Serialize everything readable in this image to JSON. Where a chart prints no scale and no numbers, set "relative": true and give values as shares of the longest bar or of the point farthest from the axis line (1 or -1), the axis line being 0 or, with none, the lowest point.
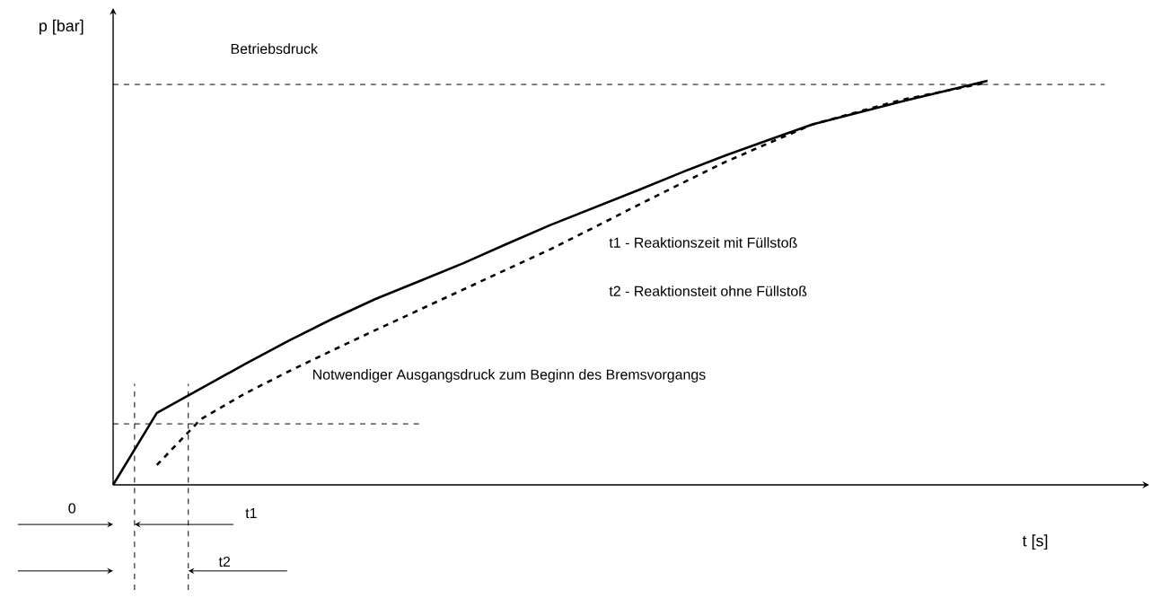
{
  "chart_data": {
    "type": "line",
    "relative": true,
    "xlabel": "t [s]",
    "ylabel": "p [bar]",
    "marker": "none",
    "categories": [
      null,
      null,
      null,
      null,
      null,
      null,
      null,
      null,
      null,
      null,
      null,
      null,
      null,
      null,
      null,
      null,
      null,
      null,
      null,
      null,
      null,
      null,
      null,
      null
    ],
    "series": [
      {
        "color": "#000000",
        "line_style": "solid",
        "values": [
          0,
          0.178,
          0.238,
          0.298,
          0.356,
          0.41,
          0.46,
          0.504,
          0.548,
          0.596,
          0.643,
          0.686,
          0.729,
          0.773,
          0.815,
          0.854,
          0.892,
          0.92,
          0.948,
          0.974,
          1.0,
          null,
          null,
          null
        ]
      },
      {
        "color": "#000000",
        "line_style": "dashed",
        "values": [
          null,
          0.049,
          0.162,
          0.225,
          0.28,
          0.332,
          0.383,
          0.433,
          0.483,
          0.533,
          0.583,
          0.637,
          0.692,
          0.746,
          0.799,
          0.846,
          0.892,
          0.922,
          0.952,
          0.974,
          0.996,
          null,
          null,
          null
        ]
      }
    ],
    "ref_lines": [
      {
        "axis": "y",
        "value": 0.991,
        "label": "Betriebsdruck",
        "line_style": "dashed"
      },
      {
        "axis": "y",
        "value": 0.151,
        "label": "Notwendiger Ausgangsdruck zum Beginn des Bremsvorgangs",
        "line_style": "dashed"
      }
    ],
    "annotations": [
      "t1 - Reaktionszeit mit Füllstoß",
      "t2 - Reaktionsteit ohne Füllstoß",
      "0",
      "t1",
      "t2"
    ]
  }
}
